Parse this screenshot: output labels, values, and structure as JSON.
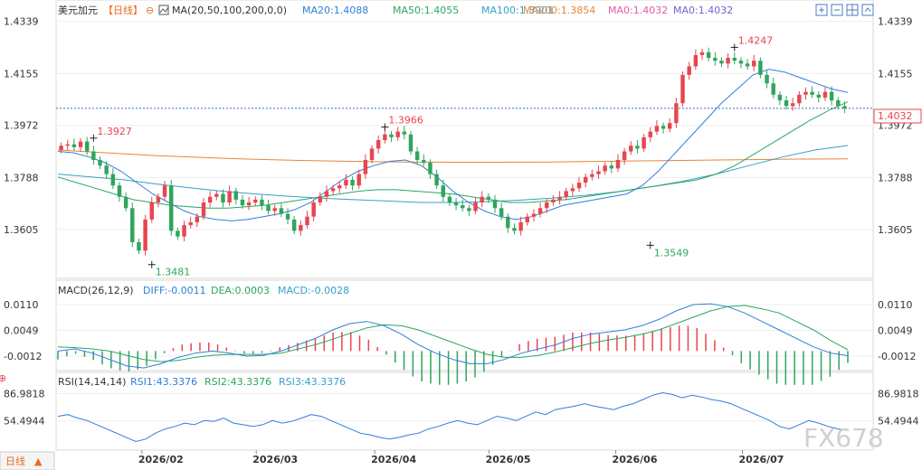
{
  "header": {
    "symbol": "美元加元",
    "period": "【日线】",
    "ma_label": "MA(20,50,100,200,0,0)",
    "ma20": "MA20:1.4088",
    "ma50": "MA50:1.4055",
    "ma100": "MA100:1.3901",
    "ma200": "MA200:1.3854",
    "ma0a": "MA0:1.4032",
    "ma0b": "MA0:1.4032"
  },
  "macd_header": {
    "title": "MACD(26,12,9)",
    "diff": "DIFF:-0.0011",
    "dea": "DEA:0.0003",
    "macd": "MACD:-0.0028"
  },
  "rsi_header": {
    "title": "RSI(14,14,14)",
    "rsi1": "RSI1:43.3376",
    "rsi2": "RSI2:43.3376",
    "rsi3": "RSI3:43.3376"
  },
  "bottom_tab": "日线",
  "watermark": "FX678",
  "colors": {
    "up": "#e8454f",
    "down": "#2fa55d",
    "ma20": "#2f7fd8",
    "ma50": "#28a861",
    "ma100": "#35a0c8",
    "ma200": "#e6873a",
    "rsi": "#2f7fd8",
    "label_red": "#e8454f",
    "label_green": "#2fa55d"
  },
  "chart_data": [
    {
      "type": "candlestick",
      "title": "美元加元【日线】",
      "y_ticks": [
        "1.4339",
        "1.4155",
        "1.3972",
        "1.3788",
        "1.3605"
      ],
      "ylim": [
        1.3445,
        1.4395
      ],
      "x_ticks": [
        "2026/02",
        "2026/03",
        "2026/04",
        "2026/05",
        "2026/06",
        "2026/07"
      ],
      "current_price": "1.4032",
      "annotations": [
        {
          "text": "1.3927",
          "kind": "high"
        },
        {
          "text": "1.3481",
          "kind": "low"
        },
        {
          "text": "1.3966",
          "kind": "high"
        },
        {
          "text": "1.3549",
          "kind": "low"
        },
        {
          "text": "1.4247",
          "kind": "high"
        }
      ],
      "closes": [
        1.39,
        1.3905,
        1.3895,
        1.3915,
        1.388,
        1.385,
        1.383,
        1.38,
        1.376,
        1.372,
        1.368,
        1.356,
        1.353,
        1.364,
        1.37,
        1.372,
        1.376,
        1.36,
        1.358,
        1.362,
        1.363,
        1.365,
        1.37,
        1.372,
        1.373,
        1.37,
        1.374,
        1.371,
        1.369,
        1.37,
        1.371,
        1.369,
        1.367,
        1.368,
        1.366,
        1.364,
        1.36,
        1.362,
        1.365,
        1.37,
        1.372,
        1.374,
        1.375,
        1.376,
        1.378,
        1.376,
        1.38,
        1.385,
        1.389,
        1.392,
        1.394,
        1.393,
        1.395,
        1.394,
        1.388,
        1.385,
        1.384,
        1.38,
        1.376,
        1.372,
        1.37,
        1.369,
        1.368,
        1.367,
        1.37,
        1.372,
        1.371,
        1.368,
        1.365,
        1.361,
        1.36,
        1.363,
        1.365,
        1.366,
        1.368,
        1.37,
        1.371,
        1.372,
        1.374,
        1.375,
        1.377,
        1.379,
        1.38,
        1.381,
        1.383,
        1.382,
        1.385,
        1.388,
        1.39,
        1.389,
        1.393,
        1.395,
        1.397,
        1.396,
        1.398,
        1.405,
        1.415,
        1.418,
        1.422,
        1.423,
        1.421,
        1.42,
        1.419,
        1.421,
        1.42,
        1.419,
        1.418,
        1.42,
        1.415,
        1.412,
        1.408,
        1.406,
        1.404,
        1.405,
        1.408,
        1.409,
        1.408,
        1.407,
        1.409,
        1.406,
        1.404,
        1.4032
      ],
      "ma20": [
        1.388,
        1.3875,
        1.386,
        1.384,
        1.381,
        1.377,
        1.373,
        1.37,
        1.367,
        1.365,
        1.364,
        1.3635,
        1.364,
        1.365,
        1.366,
        1.3675,
        1.37,
        1.374,
        1.378,
        1.381,
        1.383,
        1.3845,
        1.385,
        1.383,
        1.379,
        1.374,
        1.37,
        1.367,
        1.365,
        1.364,
        1.365,
        1.367,
        1.369,
        1.37,
        1.371,
        1.372,
        1.373,
        1.376,
        1.381,
        1.387,
        1.393,
        1.399,
        1.405,
        1.41,
        1.415,
        1.417,
        1.416,
        1.414,
        1.412,
        1.41,
        1.4088
      ],
      "ma50": [
        1.379,
        1.377,
        1.375,
        1.373,
        1.371,
        1.37,
        1.369,
        1.3685,
        1.368,
        1.368,
        1.3685,
        1.369,
        1.37,
        1.371,
        1.372,
        1.373,
        1.374,
        1.3745,
        1.3745,
        1.374,
        1.3735,
        1.373,
        1.372,
        1.371,
        1.37,
        1.37,
        1.3705,
        1.371,
        1.372,
        1.373,
        1.374,
        1.375,
        1.376,
        1.377,
        1.378,
        1.38,
        1.383,
        1.387,
        1.391,
        1.395,
        1.399,
        1.4025,
        1.4055
      ],
      "ma100": [
        1.38,
        1.379,
        1.378,
        1.3765,
        1.3752,
        1.374,
        1.373,
        1.3722,
        1.3715,
        1.371,
        1.3705,
        1.37,
        1.37,
        1.3703,
        1.3708,
        1.3715,
        1.3725,
        1.3738,
        1.3755,
        1.3775,
        1.38,
        1.383,
        1.386,
        1.3885,
        1.3901
      ],
      "ma200": [
        1.3885,
        1.3875,
        1.3865,
        1.3858,
        1.3852,
        1.3848,
        1.3845,
        1.3843,
        1.3842,
        1.3842,
        1.3843,
        1.3845,
        1.3847,
        1.3849,
        1.3851,
        1.3853,
        1.3854
      ]
    },
    {
      "type": "macd",
      "title": "MACD(26,12,9)",
      "y_ticks": [
        "0.0110",
        "0.0049",
        "-0.0012"
      ],
      "ylim": [
        -0.0042,
        0.0125
      ],
      "diff": [
        0.0,
        0.0005,
        -0.0005,
        -0.002,
        -0.0035,
        -0.004,
        -0.003,
        -0.0015,
        -0.0005,
        0.0,
        -0.0005,
        -0.0012,
        -0.001,
        0.0,
        0.0015,
        0.003,
        0.005,
        0.0065,
        0.007,
        0.006,
        0.004,
        0.0015,
        -0.0005,
        -0.002,
        -0.003,
        -0.003,
        -0.002,
        -0.0005,
        0.0005,
        0.0015,
        0.003,
        0.004,
        0.0045,
        0.005,
        0.006,
        0.0075,
        0.0095,
        0.011,
        0.0112,
        0.0105,
        0.009,
        0.007,
        0.005,
        0.003,
        0.001,
        -0.0005,
        -0.0011
      ],
      "dea": [
        0.001,
        0.0008,
        0.0005,
        0.0,
        -0.001,
        -0.002,
        -0.0025,
        -0.0022,
        -0.0015,
        -0.001,
        -0.0008,
        -0.0008,
        -0.0008,
        -0.0005,
        0.0005,
        0.0015,
        0.0028,
        0.0042,
        0.0055,
        0.0062,
        0.006,
        0.005,
        0.0035,
        0.002,
        0.0005,
        -0.0008,
        -0.0015,
        -0.0015,
        -0.001,
        -0.0002,
        0.0008,
        0.0018,
        0.0026,
        0.0032,
        0.004,
        0.005,
        0.0065,
        0.008,
        0.0095,
        0.0105,
        0.0108,
        0.01,
        0.009,
        0.007,
        0.005,
        0.0025,
        0.0003
      ],
      "hist": [
        -0.0028
      ]
    },
    {
      "type": "line",
      "title": "RSI(14,14,14)",
      "y_ticks": [
        "86.9818",
        "54.4944"
      ],
      "ylim": [
        22,
        95
      ],
      "rsi": [
        60,
        62,
        58,
        55,
        50,
        45,
        40,
        35,
        30,
        33,
        40,
        45,
        48,
        52,
        50,
        55,
        54,
        58,
        52,
        50,
        48,
        50,
        55,
        52,
        54,
        58,
        62,
        60,
        55,
        50,
        45,
        40,
        38,
        35,
        33,
        35,
        38,
        40,
        45,
        48,
        52,
        55,
        52,
        50,
        55,
        60,
        58,
        55,
        60,
        65,
        62,
        68,
        70,
        72,
        75,
        72,
        70,
        68,
        72,
        75,
        80,
        85,
        88,
        86,
        82,
        85,
        83,
        80,
        78,
        75,
        70,
        65,
        60,
        55,
        48,
        45,
        50,
        55,
        52,
        48,
        45,
        43.34
      ]
    }
  ]
}
